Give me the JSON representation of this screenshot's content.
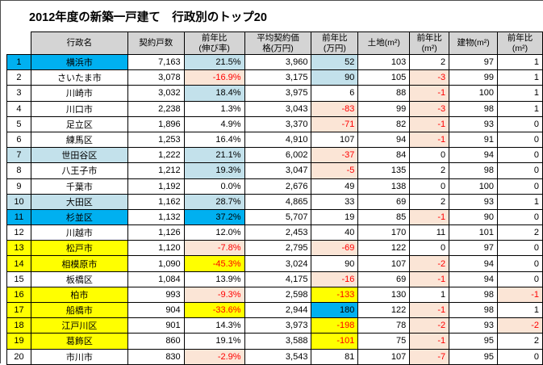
{
  "title": "2012年度の新築一戸建て　行政別のトップ20",
  "colors": {
    "highlight_cyan": "#00b0f0",
    "highlight_lightblue": "#c3e1eb",
    "highlight_yellow": "#ffff00",
    "fill_negative_peach": "#fbe5d6",
    "negative_text_red": "#ff0000",
    "header_grey": "#d4d4d4"
  },
  "table": {
    "corner_label": "",
    "headers": [
      "行政名",
      "契約戸数",
      "前年比\n(伸び率)",
      "平均契約価\n格(万円)",
      "前年比\n(万円)",
      "土地(m²)",
      "前年比\n(m²)",
      "建物(m²)",
      "前年比\n(m²)"
    ],
    "rows": [
      {
        "rank": "1",
        "name": "横浜市",
        "units": "7,163",
        "growth": "21.5%",
        "price": "3,960",
        "price_yoy": "52",
        "land": "103",
        "land_yoy": "2",
        "bldg": "97",
        "bldg_yoy": "1",
        "hl": "cyan",
        "growth_bg": "blue",
        "price_yoy_bg": "blue"
      },
      {
        "rank": "2",
        "name": "さいたま市",
        "units": "3,078",
        "growth": "-16.9%",
        "price": "3,175",
        "price_yoy": "90",
        "land": "105",
        "land_yoy": "-3",
        "bldg": "99",
        "bldg_yoy": "1",
        "growth_bg": "pink",
        "price_yoy_bg": "blue",
        "land_yoy_bg": "pink"
      },
      {
        "rank": "3",
        "name": "川崎市",
        "units": "3,032",
        "growth": "18.4%",
        "price": "3,975",
        "price_yoy": "6",
        "land": "88",
        "land_yoy": "-1",
        "bldg": "100",
        "bldg_yoy": "1",
        "growth_bg": "blue",
        "land_yoy_bg": "pink"
      },
      {
        "rank": "4",
        "name": "川口市",
        "units": "2,238",
        "growth": "1.3%",
        "price": "3,043",
        "price_yoy": "-83",
        "land": "99",
        "land_yoy": "-3",
        "bldg": "98",
        "bldg_yoy": "1",
        "price_yoy_bg": "pink",
        "land_yoy_bg": "pink"
      },
      {
        "rank": "5",
        "name": "足立区",
        "units": "1,896",
        "growth": "4.9%",
        "price": "3,370",
        "price_yoy": "-71",
        "land": "82",
        "land_yoy": "-1",
        "bldg": "93",
        "bldg_yoy": "0",
        "price_yoy_bg": "pink",
        "land_yoy_bg": "pink"
      },
      {
        "rank": "6",
        "name": "練馬区",
        "units": "1,253",
        "growth": "16.4%",
        "price": "4,910",
        "price_yoy": "107",
        "land": "94",
        "land_yoy": "-1",
        "bldg": "91",
        "bldg_yoy": "0",
        "land_yoy_bg": "pink"
      },
      {
        "rank": "7",
        "name": "世田谷区",
        "units": "1,222",
        "growth": "21.1%",
        "price": "6,002",
        "price_yoy": "-37",
        "land": "84",
        "land_yoy": "0",
        "bldg": "94",
        "bldg_yoy": "0",
        "hl": "lightblue",
        "growth_bg": "blue",
        "price_yoy_bg": "pink"
      },
      {
        "rank": "8",
        "name": "八王子市",
        "units": "1,212",
        "growth": "19.3%",
        "price": "3,047",
        "price_yoy": "-5",
        "land": "135",
        "land_yoy": "2",
        "bldg": "98",
        "bldg_yoy": "0",
        "growth_bg": "blue",
        "price_yoy_bg": "pink"
      },
      {
        "rank": "9",
        "name": "千葉市",
        "units": "1,192",
        "growth": "0.0%",
        "price": "2,676",
        "price_yoy": "49",
        "land": "138",
        "land_yoy": "0",
        "bldg": "100",
        "bldg_yoy": "0"
      },
      {
        "rank": "10",
        "name": "大田区",
        "units": "1,162",
        "growth": "28.7%",
        "price": "4,865",
        "price_yoy": "33",
        "land": "69",
        "land_yoy": "2",
        "bldg": "93",
        "bldg_yoy": "1",
        "hl": "lightblue",
        "growth_bg": "blue"
      },
      {
        "rank": "11",
        "name": "杉並区",
        "units": "1,132",
        "growth": "37.2%",
        "price": "5,707",
        "price_yoy": "19",
        "land": "85",
        "land_yoy": "-1",
        "bldg": "90",
        "bldg_yoy": "0",
        "hl": "cyan",
        "growth_bg": "cyan",
        "land_yoy_bg": "pink"
      },
      {
        "rank": "12",
        "name": "川越市",
        "units": "1,126",
        "growth": "12.0%",
        "price": "2,453",
        "price_yoy": "40",
        "land": "170",
        "land_yoy": "11",
        "bldg": "101",
        "bldg_yoy": "2"
      },
      {
        "rank": "13",
        "name": "松戸市",
        "units": "1,120",
        "growth": "-7.8%",
        "price": "2,795",
        "price_yoy": "-69",
        "land": "122",
        "land_yoy": "0",
        "bldg": "97",
        "bldg_yoy": "0",
        "hl": "yellow",
        "growth_bg": "pink",
        "price_yoy_bg": "pink"
      },
      {
        "rank": "14",
        "name": "相模原市",
        "units": "1,090",
        "growth": "-45.3%",
        "price": "3,024",
        "price_yoy": "90",
        "land": "107",
        "land_yoy": "-2",
        "bldg": "94",
        "bldg_yoy": "0",
        "hl": "yellow",
        "growth_bg": "yellow",
        "land_yoy_bg": "pink"
      },
      {
        "rank": "15",
        "name": "板橋区",
        "units": "1,084",
        "growth": "13.9%",
        "price": "4,175",
        "price_yoy": "-16",
        "land": "69",
        "land_yoy": "-1",
        "bldg": "94",
        "bldg_yoy": "0",
        "price_yoy_bg": "pink",
        "land_yoy_bg": "pink"
      },
      {
        "rank": "16",
        "name": "柏市",
        "units": "993",
        "growth": "-9.3%",
        "price": "2,598",
        "price_yoy": "-133",
        "land": "130",
        "land_yoy": "1",
        "bldg": "98",
        "bldg_yoy": "-1",
        "hl": "yellow",
        "growth_bg": "pink",
        "price_yoy_bg": "yellow",
        "bldg_yoy_bg": "pink"
      },
      {
        "rank": "17",
        "name": "船橋市",
        "units": "904",
        "growth": "-33.6%",
        "price": "2,944",
        "price_yoy": "180",
        "land": "122",
        "land_yoy": "-1",
        "bldg": "98",
        "bldg_yoy": "1",
        "hl": "yellow",
        "growth_bg": "yellow",
        "price_yoy_bg": "cyan",
        "land_yoy_bg": "pink"
      },
      {
        "rank": "18",
        "name": "江戸川区",
        "units": "901",
        "growth": "14.3%",
        "price": "3,973",
        "price_yoy": "-198",
        "land": "78",
        "land_yoy": "-2",
        "bldg": "93",
        "bldg_yoy": "-2",
        "hl": "yellow",
        "price_yoy_bg": "yellow",
        "land_yoy_bg": "pink",
        "bldg_yoy_bg": "pink"
      },
      {
        "rank": "19",
        "name": "葛飾区",
        "units": "860",
        "growth": "19.1%",
        "price": "3,588",
        "price_yoy": "-101",
        "land": "75",
        "land_yoy": "-1",
        "bldg": "95",
        "bldg_yoy": "2",
        "hl": "yellow",
        "price_yoy_bg": "yellow",
        "land_yoy_bg": "pink"
      },
      {
        "rank": "20",
        "name": "市川市",
        "units": "830",
        "growth": "-2.9%",
        "price": "3,543",
        "price_yoy": "81",
        "land": "107",
        "land_yoy": "-7",
        "bldg": "95",
        "bldg_yoy": "0",
        "growth_bg": "pink",
        "land_yoy_bg": "pink"
      }
    ]
  }
}
